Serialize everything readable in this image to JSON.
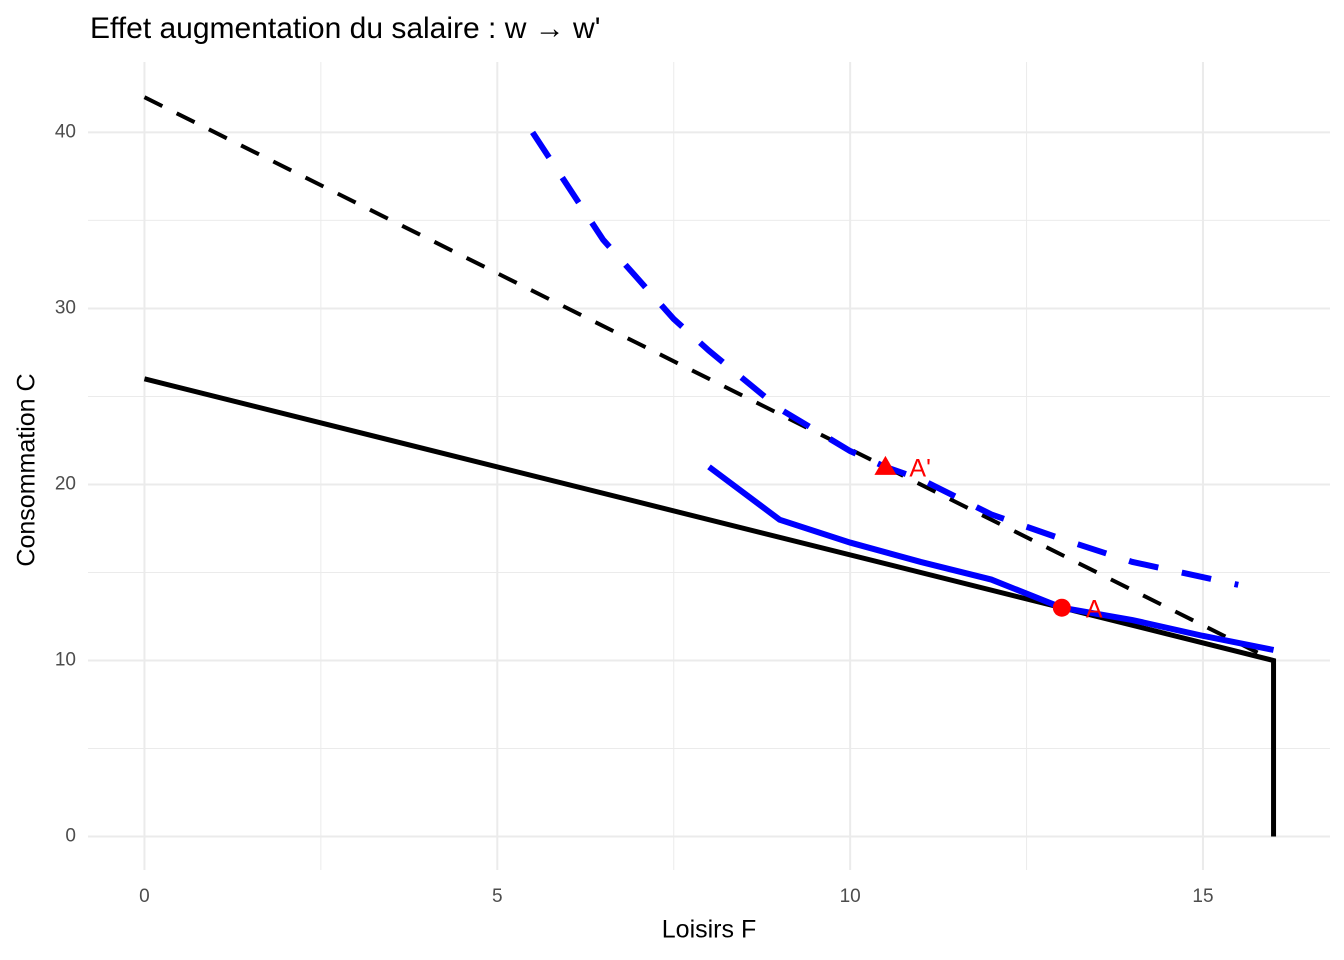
{
  "chart_data": {
    "type": "line",
    "title": "Effet augmentation du salaire : w → w'",
    "xlabel": "Loisirs F",
    "ylabel": "Consommation C",
    "xlim": [
      -0.8,
      16.8
    ],
    "ylim": [
      -1.9,
      44
    ],
    "xticks": [
      0,
      5,
      10,
      15
    ],
    "yticks": [
      0,
      10,
      20,
      30,
      40
    ],
    "xminorticks": [
      2.5,
      7.5,
      12.5
    ],
    "yminorticks": [
      5,
      15,
      25,
      35
    ],
    "grid": true,
    "grid_color": "#ebebeb",
    "series": [
      {
        "color": "#000000",
        "dash": "solid",
        "width": 5,
        "x": [
          0,
          16,
          16
        ],
        "values": [
          26,
          10,
          0
        ]
      },
      {
        "color": "#000000",
        "dash": "dashed",
        "width": 4,
        "x": [
          0,
          16
        ],
        "values": [
          42,
          10
        ]
      },
      {
        "color": "#0000ff",
        "dash": "solid",
        "width": 6,
        "x": [
          8,
          9,
          10,
          11,
          12,
          13,
          14,
          15,
          16
        ],
        "values": [
          21,
          18,
          16.7,
          15.6,
          14.6,
          13,
          12.3,
          11.4,
          10.6
        ]
      },
      {
        "color": "#0000ff",
        "dash": "dashed",
        "width": 6,
        "x": [
          5.5,
          6.5,
          7.5,
          8,
          9,
          10,
          10.5,
          11,
          12,
          13,
          14,
          15.5
        ],
        "values": [
          40,
          33.9,
          29.4,
          27.6,
          24.3,
          21.9,
          21,
          20.3,
          18.3,
          16.9,
          15.6,
          14.3
        ]
      }
    ],
    "points": [
      {
        "label": "A",
        "shape": "circle",
        "color": "#ff0000",
        "x": 13,
        "y": 13
      },
      {
        "label": "A'",
        "shape": "triangle",
        "color": "#ff0000",
        "x": 10.5,
        "y": 21
      }
    ]
  }
}
